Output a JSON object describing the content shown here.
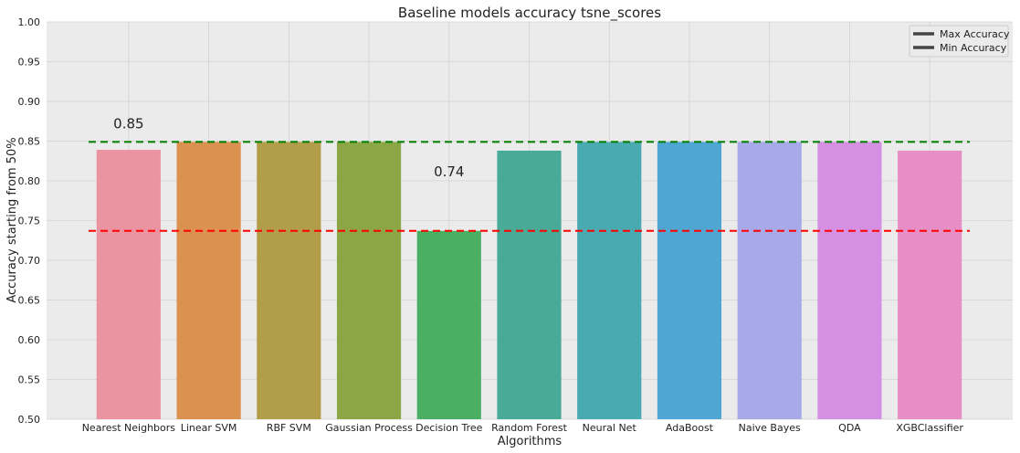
{
  "chart_data": {
    "type": "bar",
    "title": "Baseline models accuracy tsne_scores",
    "xlabel": "Algorithms",
    "ylabel": "Accuracy starting from 50%",
    "ylim": [
      0.5,
      1.0
    ],
    "yticks": [
      "0.50",
      "0.55",
      "0.60",
      "0.65",
      "0.70",
      "0.75",
      "0.80",
      "0.85",
      "0.90",
      "0.95",
      "1.00"
    ],
    "grid": true,
    "legend_position": "top-right",
    "categories": [
      "Nearest Neighbors",
      "Linear SVM",
      "RBF SVM",
      "Gaussian Process",
      "Decision Tree",
      "Random Forest",
      "Neural Net",
      "AdaBoost",
      "Naive Bayes",
      "QDA",
      "XGBClassifier"
    ],
    "values": [
      0.839,
      0.849,
      0.849,
      0.849,
      0.737,
      0.838,
      0.849,
      0.849,
      0.849,
      0.849,
      0.838
    ],
    "bar_colors": [
      "#e994a0",
      "#db914f",
      "#b29e4a",
      "#8da645",
      "#4aaf63",
      "#49ab97",
      "#4aaab2",
      "#50a6d2",
      "#a8a9e8",
      "#d590e4",
      "#e88ec7"
    ],
    "reference_lines": [
      {
        "name": "Max Accuracy",
        "value": 0.849,
        "color": "#008000",
        "style": "dashed"
      },
      {
        "name": "Min Accuracy",
        "value": 0.737,
        "color": "#ff0000",
        "style": "dashed"
      }
    ],
    "annotations": [
      {
        "text": "0.85",
        "category_index": 0,
        "y": 0.866
      },
      {
        "text": "0.74",
        "category_index": 4,
        "y": 0.806
      }
    ],
    "legend": [
      "Max Accuracy",
      "Min Accuracy"
    ],
    "legend_swatch_color": "#444444"
  },
  "colors": {
    "plot_background": "#ebebeb",
    "grid": "#d2d2d2"
  }
}
